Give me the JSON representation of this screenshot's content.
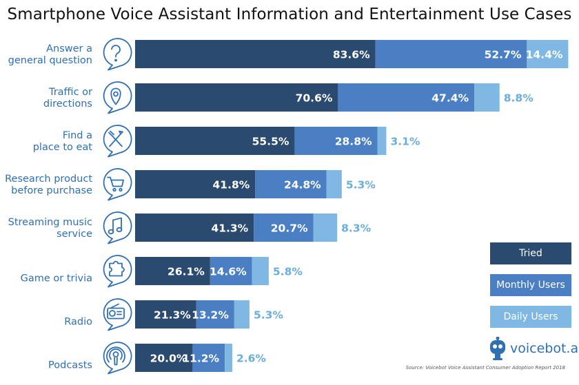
{
  "colors": {
    "tried": "#2b4a6f",
    "monthly": "#4a7fc4",
    "daily": "#7fb9e3",
    "category_text": "#2f6fb2",
    "icon": "#2f6fb2",
    "outside_label": "#6aaedc"
  },
  "chart_data": {
    "type": "bar",
    "orientation": "horizontal",
    "stacked": true,
    "title": "Smartphone Voice Assistant Information and Entertainment Use Cases",
    "categories": [
      "Answer a general question",
      "Traffic or directions",
      "Find a place to eat",
      "Research product before purchase",
      "Streaming music service",
      "Game or trivia",
      "Radio",
      "Podcasts"
    ],
    "category_lines": [
      [
        "Answer a",
        "general question"
      ],
      [
        "Traffic or",
        "directions"
      ],
      [
        "Find a",
        "place to eat"
      ],
      [
        "Research product",
        "before purchase"
      ],
      [
        "Streaming music",
        "service"
      ],
      [
        "Game or trivia"
      ],
      [
        "Radio"
      ],
      [
        "Podcasts"
      ]
    ],
    "icons": [
      "question-icon",
      "location-pin-icon",
      "fork-knife-icon",
      "shopping-cart-icon",
      "music-note-icon",
      "puzzle-icon",
      "radio-icon",
      "podcast-icon"
    ],
    "series": [
      {
        "name": "Tried",
        "values": [
          83.6,
          70.6,
          55.5,
          41.8,
          41.3,
          26.1,
          21.3,
          20.0
        ],
        "labels": [
          "83.6%",
          "70.6%",
          "55.5%",
          "41.8%",
          "41.3%",
          "26.1%",
          "21.3%",
          "20.0%"
        ]
      },
      {
        "name": "Monthly Users",
        "values": [
          52.7,
          47.4,
          28.8,
          24.8,
          20.7,
          14.6,
          13.2,
          11.2
        ],
        "labels": [
          "52.7%",
          "47.4%",
          "28.8%",
          "24.8%",
          "20.7%",
          "14.6%",
          "13.2%",
          "11.2%"
        ]
      },
      {
        "name": "Daily Users",
        "values": [
          14.4,
          8.8,
          3.1,
          5.3,
          8.3,
          5.8,
          5.3,
          2.6
        ],
        "labels": [
          "14.4%",
          "8.8%",
          "3.1%",
          "5.3%",
          "8.3%",
          "5.8%",
          "5.3%",
          "2.6%"
        ]
      }
    ],
    "legend": [
      "Tried",
      "Monthly Users",
      "Daily Users"
    ],
    "legend_position": "right"
  },
  "brand": {
    "name": "voicebot.ai"
  },
  "source": "Source: Voicebot Voice Assistant Consumer Adoption Report 2018"
}
